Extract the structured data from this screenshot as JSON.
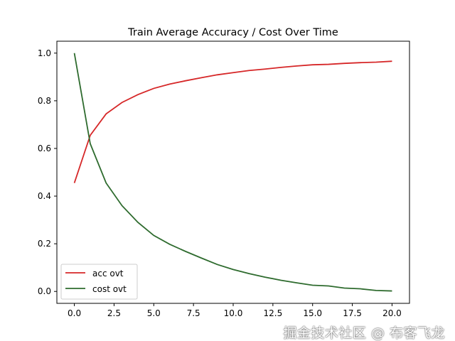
{
  "chart_data": {
    "type": "line",
    "title": "Train Average Accuracy / Cost Over Time",
    "xlabel": "",
    "ylabel": "",
    "xlim": [
      -1.1,
      21.1
    ],
    "ylim": [
      -0.05,
      1.05
    ],
    "grid": false,
    "legend_position": "lower-left",
    "x": [
      0,
      1,
      2,
      3,
      4,
      5,
      6,
      7,
      8,
      9,
      10,
      11,
      12,
      13,
      14,
      15,
      16,
      17,
      18,
      19,
      20
    ],
    "x_ticks": [
      0,
      2.5,
      5,
      7.5,
      10,
      12.5,
      15,
      17.5,
      20
    ],
    "x_tick_labels": [
      "0.0",
      "2.5",
      "5.0",
      "7.5",
      "10.0",
      "12.5",
      "15.0",
      "17.5",
      "20.0"
    ],
    "y_ticks": [
      0,
      0.2,
      0.4,
      0.6,
      0.8,
      1.0
    ],
    "y_tick_labels": [
      "0.0",
      "0.2",
      "0.4",
      "0.6",
      "0.8",
      "1.0"
    ],
    "series": [
      {
        "name": "acc ovt",
        "color": "#d62728",
        "values": [
          0.455,
          0.655,
          0.745,
          0.793,
          0.826,
          0.852,
          0.87,
          0.884,
          0.897,
          0.909,
          0.918,
          0.927,
          0.933,
          0.94,
          0.946,
          0.951,
          0.953,
          0.957,
          0.96,
          0.962,
          0.966
        ]
      },
      {
        "name": "cost ovt",
        "color": "#2e6b2e",
        "values": [
          1.0,
          0.62,
          0.455,
          0.36,
          0.29,
          0.235,
          0.198,
          0.168,
          0.14,
          0.113,
          0.092,
          0.075,
          0.06,
          0.047,
          0.036,
          0.026,
          0.023,
          0.014,
          0.011,
          0.004,
          0.002
        ]
      }
    ]
  },
  "watermark": "掘金技术社区 @ 布客飞龙"
}
